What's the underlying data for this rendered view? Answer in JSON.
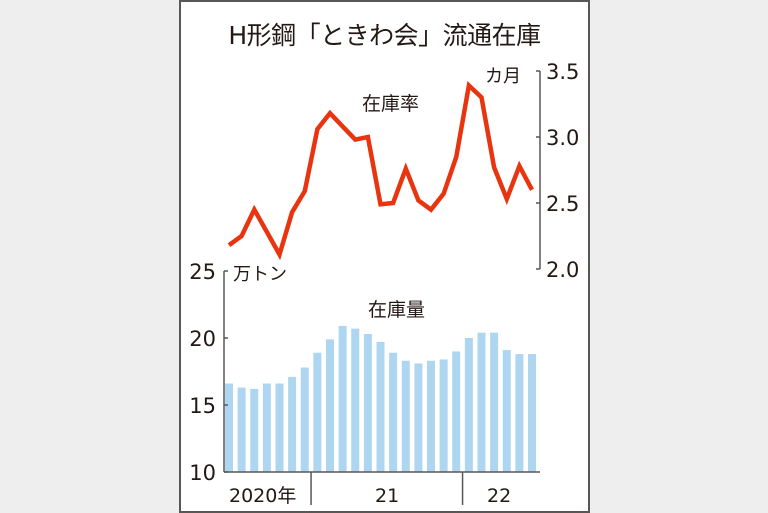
{
  "title": "H形鋼「ときわ会」流通在庫",
  "colors": {
    "line": "#e8340f",
    "bar": "#aed6f1",
    "axis": "#5a5656",
    "text": "#231815",
    "background": "#eeeeee",
    "panel": "#ffffff"
  },
  "labels": {
    "line_series": "在庫率",
    "bar_series": "在庫量",
    "right_unit": "カ月",
    "left_unit": "万トン",
    "year_2020": "2020年",
    "year_2021": "21",
    "year_2022": "22"
  },
  "chart_data": {
    "type": "bar+line",
    "title": "H形鋼「ときわ会」流通在庫",
    "categories": [
      "2020-06",
      "2020-07",
      "2020-08",
      "2020-09",
      "2020-10",
      "2020-11",
      "2020-12",
      "2021-01",
      "2021-02",
      "2021-03",
      "2021-04",
      "2021-05",
      "2021-06",
      "2021-07",
      "2021-08",
      "2021-09",
      "2021-10",
      "2021-11",
      "2021-12",
      "2022-01",
      "2022-02",
      "2022-03",
      "2022-04",
      "2022-05",
      "2022-06"
    ],
    "x_tick_groups": [
      {
        "label": "2020年",
        "count": 7
      },
      {
        "label": "21",
        "count": 12
      },
      {
        "label": "22",
        "count": 6
      }
    ],
    "series": [
      {
        "name": "在庫量",
        "type": "bar",
        "axis": "left",
        "unit": "万トン",
        "values": [
          16.6,
          16.3,
          16.2,
          16.6,
          16.6,
          17.1,
          17.8,
          18.9,
          19.9,
          20.9,
          20.7,
          20.3,
          19.7,
          18.9,
          18.3,
          18.1,
          18.3,
          18.4,
          19.0,
          20.0,
          20.4,
          20.4,
          19.1,
          18.8,
          18.8
        ]
      },
      {
        "name": "在庫率",
        "type": "line",
        "axis": "right",
        "unit": "カ月",
        "values": [
          2.18,
          2.25,
          2.45,
          2.28,
          2.11,
          2.43,
          2.59,
          3.06,
          3.18,
          3.08,
          2.98,
          3.0,
          2.49,
          2.5,
          2.76,
          2.52,
          2.45,
          2.57,
          2.85,
          3.39,
          3.3,
          2.77,
          2.53,
          2.78,
          2.6
        ]
      }
    ],
    "left_axis": {
      "label": "万トン",
      "range": [
        10,
        25
      ],
      "ticks": [
        10,
        15,
        20,
        25
      ]
    },
    "right_axis": {
      "label": "カ月",
      "range": [
        2.0,
        3.5
      ],
      "ticks": [
        "2.0",
        "2.5",
        "3.0",
        "3.5"
      ]
    },
    "grid": false,
    "legend": "inline labels"
  }
}
